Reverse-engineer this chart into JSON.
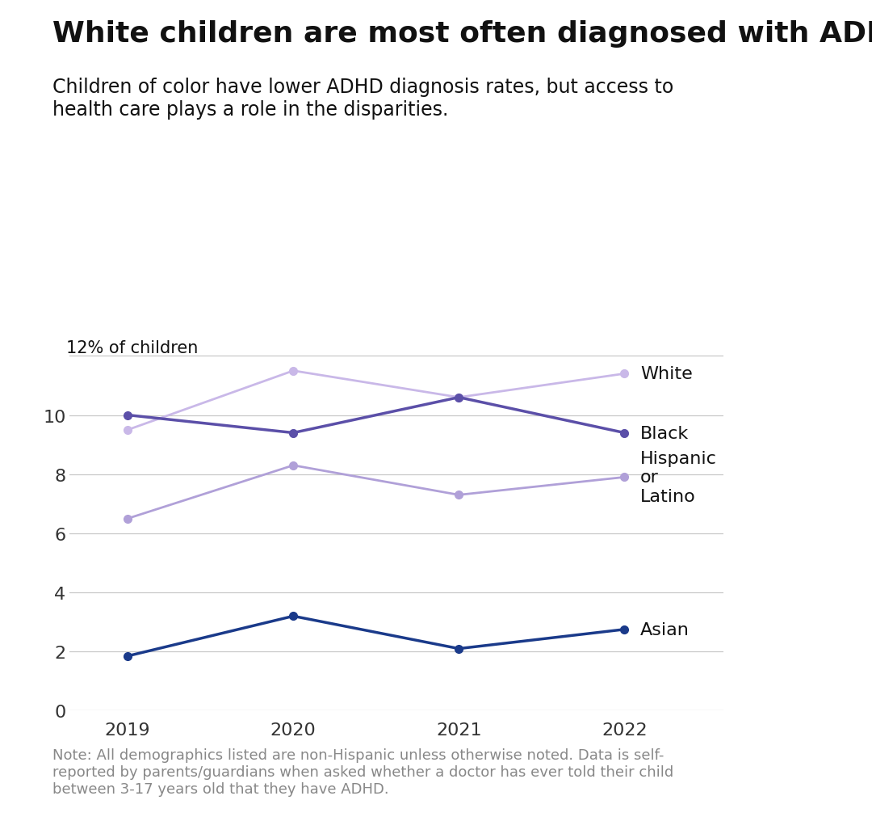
{
  "title": "White children are most often diagnosed with ADHD",
  "subtitle": "Children of color have lower ADHD diagnosis rates, but access to\nhealth care plays a role in the disparities.",
  "ylabel": "12% of children",
  "note": "Note: All demographics listed are non-Hispanic unless otherwise noted. Data is self-\nreported by parents/guardians when asked whether a doctor has ever told their child\nbetween 3-17 years old that they have ADHD.",
  "years": [
    2019,
    2020,
    2021,
    2022
  ],
  "series": [
    {
      "label": "White",
      "values": [
        9.5,
        11.5,
        10.6,
        11.4
      ],
      "color": "#c9b8e8",
      "linewidth": 2.0,
      "markersize": 7
    },
    {
      "label": "Black",
      "values": [
        10.0,
        9.4,
        10.6,
        9.4
      ],
      "color": "#5b4fa8",
      "linewidth": 2.5,
      "markersize": 7
    },
    {
      "label": "Hispanic\nor\nLatino",
      "values": [
        6.5,
        8.3,
        7.3,
        7.9
      ],
      "color": "#b0a0d8",
      "linewidth": 2.0,
      "markersize": 7
    },
    {
      "label": "Asian",
      "values": [
        1.85,
        3.2,
        2.1,
        2.75
      ],
      "color": "#1a3a8a",
      "linewidth": 2.5,
      "markersize": 7
    }
  ],
  "ylim": [
    0,
    13
  ],
  "yticks": [
    0,
    2,
    4,
    6,
    8,
    10,
    12
  ],
  "background_color": "#ffffff",
  "grid_color": "#c8c8c8",
  "title_fontsize": 26,
  "subtitle_fontsize": 17,
  "label_fontsize": 16,
  "note_fontsize": 13,
  "tick_fontsize": 16,
  "tick_color": "#333333",
  "note_color": "#888888",
  "text_color": "#111111"
}
